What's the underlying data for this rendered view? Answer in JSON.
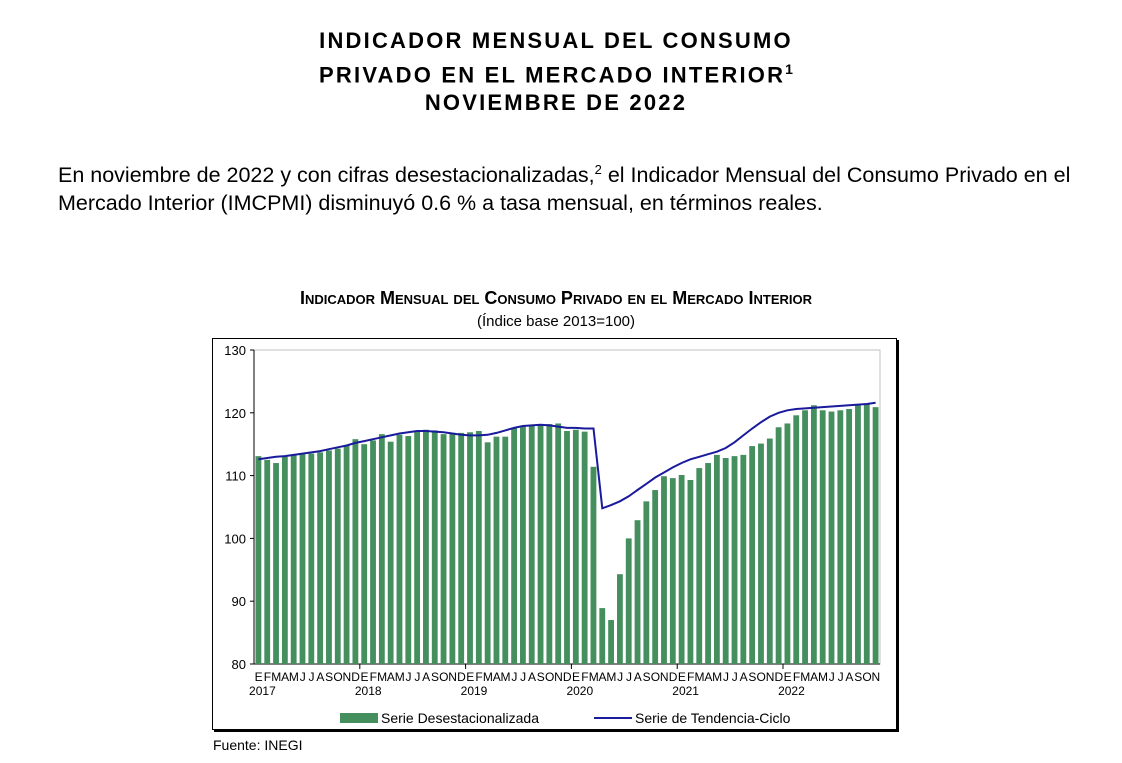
{
  "document": {
    "title_lines": [
      "INDICADOR MENSUAL DEL CONSUMO",
      "PRIVADO EN EL MERCADO INTERIOR",
      "NOVIEMBRE DE 2022"
    ],
    "title_footnote": "1",
    "paragraph_part1": "En noviembre de 2022 y con cifras desestacionalizadas,",
    "paragraph_footnote": "2",
    "paragraph_part2": " el Indicador Mensual del Consumo Privado en el Mercado Interior (IMCPMI) disminuyó 0.6 % a tasa mensual, en términos reales.",
    "source": "Fuente: INEGI"
  },
  "chart_data": {
    "type": "bar",
    "title": "Indicador Mensual del Consumo Privado en el Mercado Interior",
    "subtitle": "(Índice base 2013=100)",
    "month_letters": [
      "E",
      "F",
      "M",
      "A",
      "M",
      "J",
      "J",
      "A",
      "S",
      "O",
      "N",
      "D"
    ],
    "years": [
      "2017",
      "2018",
      "2019",
      "2020",
      "2021",
      "2022"
    ],
    "ylim": [
      80,
      130
    ],
    "yticks": [
      80,
      90,
      100,
      110,
      120,
      130
    ],
    "grid": false,
    "legend_position": "bottom",
    "colors": {
      "bars": "#458f5e",
      "trend": "#1a1a9c"
    },
    "series": [
      {
        "name": "Serie Desestacionalizada",
        "type": "bar",
        "values": [
          113.1,
          112.5,
          112.0,
          113.0,
          113.2,
          113.4,
          113.5,
          113.7,
          114.0,
          114.3,
          114.8,
          115.8,
          115.0,
          115.6,
          116.6,
          115.4,
          116.5,
          116.3,
          117.0,
          117.3,
          117.2,
          116.6,
          116.8,
          116.8,
          116.9,
          117.1,
          115.3,
          116.2,
          116.2,
          117.6,
          117.9,
          118.0,
          118.2,
          118.2,
          118.3,
          117.1,
          117.3,
          117.0,
          111.4,
          88.9,
          87.0,
          94.3,
          100.0,
          102.9,
          105.9,
          107.7,
          109.9,
          109.6,
          110.1,
          109.3,
          111.2,
          112.0,
          113.3,
          112.8,
          113.1,
          113.3,
          114.7,
          115.1,
          115.9,
          117.7,
          118.3,
          119.6,
          120.4,
          121.2,
          120.4,
          120.2,
          120.4,
          120.6,
          121.2,
          121.4,
          120.9
        ]
      },
      {
        "name": "Serie de Tendencia-Ciclo",
        "type": "line",
        "values": [
          112.6,
          112.8,
          113.0,
          113.1,
          113.3,
          113.5,
          113.7,
          113.9,
          114.2,
          114.5,
          114.8,
          115.2,
          115.5,
          115.8,
          116.1,
          116.4,
          116.7,
          116.9,
          117.1,
          117.1,
          117.0,
          116.9,
          116.7,
          116.5,
          116.4,
          116.4,
          116.5,
          116.8,
          117.2,
          117.6,
          117.9,
          118.0,
          118.1,
          118.0,
          117.8,
          117.6,
          117.6,
          117.5,
          117.5,
          104.8,
          105.3,
          105.9,
          106.7,
          107.7,
          108.7,
          109.7,
          110.5,
          111.3,
          112.0,
          112.6,
          113.0,
          113.4,
          113.8,
          114.4,
          115.3,
          116.4,
          117.5,
          118.5,
          119.4,
          120.0,
          120.4,
          120.6,
          120.7,
          120.8,
          120.9,
          121.0,
          121.1,
          121.2,
          121.3,
          121.4,
          121.6
        ]
      }
    ]
  }
}
